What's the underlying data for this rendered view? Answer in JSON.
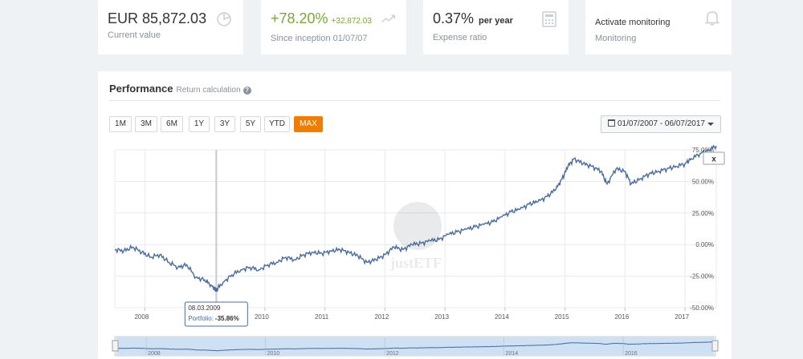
{
  "kpis": {
    "value": {
      "amount": "EUR 85,872.03",
      "label": "Current value",
      "icon": "pie-chart-icon"
    },
    "performance": {
      "percent": "+78.20%",
      "absolute": "+32,872.03",
      "label": "Since inception 01/07/07",
      "icon": "trend-line-icon"
    },
    "expense": {
      "ratio": "0.37%",
      "unit": "per year",
      "label": "Expense ratio",
      "icon": "calculator-icon"
    },
    "monitoring": {
      "action": "Activate monitoring",
      "label": "Monitoring",
      "icon": "bell-icon"
    }
  },
  "performance": {
    "title": "Performance",
    "link": "Return calculation",
    "help_icon": "?",
    "ranges": [
      "1M",
      "3M",
      "6M",
      "1Y",
      "3Y",
      "5Y",
      "YTD",
      "MAX"
    ],
    "active_range": "MAX",
    "date_range": "01/07/2007 - 06/07/2017",
    "close_label": "x",
    "watermark": "justETF"
  },
  "chart_data": {
    "type": "line",
    "x_ticks": [
      "2008",
      "2010",
      "2011",
      "2012",
      "2013",
      "2014",
      "2015",
      "2016",
      "2017"
    ],
    "nav_ticks": [
      "2008",
      "2010",
      "2012",
      "2014",
      "2016"
    ],
    "y_ticks": [
      "75.00%",
      "50.00%",
      "25.00%",
      "0.00%",
      "-25.00%",
      "-50.00%"
    ],
    "ylim": [
      -50,
      75
    ],
    "xlim": [
      2007.5,
      2017.52
    ],
    "series": [
      {
        "points": [
          [
            2007.5,
            -4
          ],
          [
            2007.65,
            -5
          ],
          [
            2007.8,
            -2
          ],
          [
            2007.95,
            -6
          ],
          [
            2008.1,
            -10
          ],
          [
            2008.25,
            -8
          ],
          [
            2008.4,
            -14
          ],
          [
            2008.55,
            -18
          ],
          [
            2008.7,
            -16
          ],
          [
            2008.85,
            -26
          ],
          [
            2009.0,
            -28
          ],
          [
            2009.1,
            -32
          ],
          [
            2009.19,
            -35.86
          ],
          [
            2009.3,
            -30
          ],
          [
            2009.45,
            -24
          ],
          [
            2009.6,
            -20
          ],
          [
            2009.75,
            -18
          ],
          [
            2009.9,
            -20
          ],
          [
            2010.05,
            -16
          ],
          [
            2010.2,
            -14
          ],
          [
            2010.35,
            -10
          ],
          [
            2010.5,
            -12
          ],
          [
            2010.65,
            -8
          ],
          [
            2010.8,
            -6
          ],
          [
            2010.95,
            -7
          ],
          [
            2011.1,
            -5
          ],
          [
            2011.25,
            -4
          ],
          [
            2011.4,
            -6
          ],
          [
            2011.55,
            -9
          ],
          [
            2011.7,
            -14
          ],
          [
            2011.85,
            -12
          ],
          [
            2012.0,
            -8
          ],
          [
            2012.15,
            -2
          ],
          [
            2012.3,
            -4
          ],
          [
            2012.45,
            0
          ],
          [
            2012.6,
            1
          ],
          [
            2012.75,
            3
          ],
          [
            2012.9,
            4
          ],
          [
            2013.05,
            8
          ],
          [
            2013.2,
            10
          ],
          [
            2013.35,
            12
          ],
          [
            2013.5,
            14
          ],
          [
            2013.65,
            16
          ],
          [
            2013.8,
            18
          ],
          [
            2013.95,
            22
          ],
          [
            2014.1,
            26
          ],
          [
            2014.25,
            28
          ],
          [
            2014.4,
            32
          ],
          [
            2014.55,
            34
          ],
          [
            2014.7,
            38
          ],
          [
            2014.85,
            44
          ],
          [
            2014.95,
            52
          ],
          [
            2015.05,
            62
          ],
          [
            2015.15,
            68
          ],
          [
            2015.3,
            64
          ],
          [
            2015.45,
            62
          ],
          [
            2015.6,
            58
          ],
          [
            2015.7,
            48
          ],
          [
            2015.85,
            60
          ],
          [
            2016.0,
            58
          ],
          [
            2016.1,
            48
          ],
          [
            2016.25,
            52
          ],
          [
            2016.4,
            56
          ],
          [
            2016.55,
            58
          ],
          [
            2016.7,
            60
          ],
          [
            2016.85,
            62
          ],
          [
            2017.0,
            64
          ],
          [
            2017.1,
            68
          ],
          [
            2017.25,
            72
          ],
          [
            2017.4,
            75
          ],
          [
            2017.52,
            78.2
          ]
        ]
      }
    ],
    "tooltip": {
      "date": "08.03.2009",
      "series": "Portfolio:",
      "value": "-35.86%",
      "x": 2009.19,
      "y": -35.86
    }
  },
  "colors": {
    "line": "#4a6b9b",
    "accent": "#f07d00",
    "green": "#7aa53a",
    "grid": "#e8eaed",
    "nav_fill": "#c6dbf4"
  }
}
